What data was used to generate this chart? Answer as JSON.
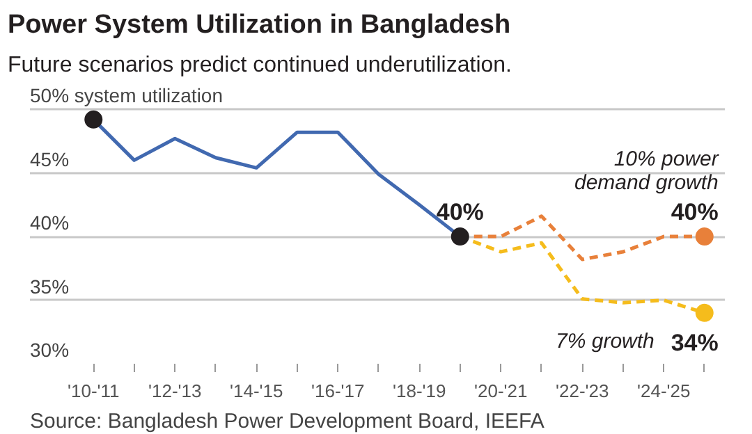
{
  "chart_data": {
    "type": "line",
    "title": "Power System Utilization in Bangladesh",
    "subtitle": "Future scenarios predict continued underutilization.",
    "categories": [
      "'10-'11",
      null,
      "'12-'13",
      null,
      "'14-'15",
      null,
      "'16-'17",
      null,
      "'18-'19",
      null,
      "'20-'21",
      null,
      "'22-'23",
      null,
      "'24-'25",
      null
    ],
    "ylim": [
      30,
      50
    ],
    "yticks": [
      {
        "value": 30,
        "label": "30%"
      },
      {
        "value": 35,
        "label": "35%"
      },
      {
        "value": 40,
        "label": "40%"
      },
      {
        "value": 45,
        "label": "45%"
      },
      {
        "value": 50,
        "label": "50% system utilization"
      }
    ],
    "grid": "y",
    "legend": false,
    "series": [
      {
        "color": "#4169b0",
        "line_style": "solid",
        "marker": "none",
        "values": [
          49.2,
          46.0,
          47.7,
          46.2,
          45.4,
          48.2,
          48.2,
          44.9,
          42.5,
          40,
          null,
          null,
          null,
          null,
          null,
          null
        ]
      },
      {
        "name": "10% power demand growth",
        "color": "#e8803a",
        "line_style": "dashed",
        "marker": "none",
        "values": [
          null,
          null,
          null,
          null,
          null,
          null,
          null,
          null,
          null,
          40,
          40.0,
          41.6,
          38.2,
          38.8,
          40.0,
          40
        ]
      },
      {
        "name": "7% growth",
        "color": "#f5bc1c",
        "line_style": "dashed",
        "marker": "none",
        "values": [
          null,
          null,
          null,
          null,
          null,
          null,
          null,
          null,
          null,
          40,
          38.8,
          39.5,
          35.1,
          34.8,
          35.0,
          34
        ]
      },
      {
        "type": "scatter",
        "marker": "circle",
        "color": "#231f20",
        "values": [
          49.2,
          null,
          null,
          null,
          null,
          null,
          null,
          null,
          null,
          40,
          null,
          null,
          null,
          null,
          null,
          null
        ],
        "value_labels": [
          null,
          null,
          null,
          null,
          null,
          null,
          null,
          null,
          null,
          "40%",
          null,
          null,
          null,
          null,
          null,
          null
        ]
      },
      {
        "type": "scatter",
        "marker": "circle",
        "color": "#e8803a",
        "values": [
          null,
          null,
          null,
          null,
          null,
          null,
          null,
          null,
          null,
          null,
          null,
          null,
          null,
          null,
          null,
          40
        ],
        "value_labels": [
          null,
          null,
          null,
          null,
          null,
          null,
          null,
          null,
          null,
          null,
          null,
          null,
          null,
          null,
          null,
          "40%"
        ]
      },
      {
        "type": "scatter",
        "marker": "circle",
        "color": "#f5bc1c",
        "values": [
          null,
          null,
          null,
          null,
          null,
          null,
          null,
          null,
          null,
          null,
          null,
          null,
          null,
          null,
          null,
          34
        ],
        "value_labels": [
          null,
          null,
          null,
          null,
          null,
          null,
          null,
          null,
          null,
          null,
          null,
          null,
          null,
          null,
          null,
          "34%"
        ]
      }
    ],
    "annotations": [
      "Source: Bangladesh Power Development Board, IEEFA"
    ]
  }
}
